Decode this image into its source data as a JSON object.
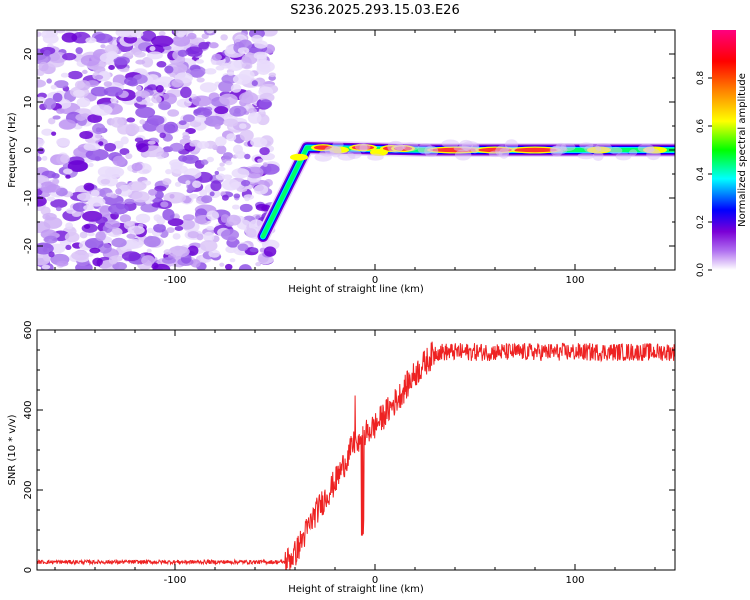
{
  "title": "S236.2025.293.15.03.E26",
  "chart_data": [
    {
      "type": "heatmap",
      "name": "spectrogram",
      "xlabel": "Height of straight line (km)",
      "ylabel": "Frequency (Hz)",
      "xlim": [
        -169,
        150
      ],
      "ylim": [
        -25,
        25
      ],
      "xticks": [
        -100,
        0,
        100
      ],
      "xtick_labels": [
        "-100",
        "0",
        "100"
      ],
      "yticks": [
        20,
        10,
        0,
        -10,
        -20
      ],
      "ytick_labels": [
        "20",
        "10",
        "0",
        "-10",
        "-20"
      ],
      "noise_region_x": [
        -169,
        -51
      ],
      "ramp": {
        "x_start": -56,
        "f_start": -17,
        "x_end": -34,
        "f_end": 0
      },
      "signal_band_freq": 0,
      "description_legend": "Normalized spectral amplitude",
      "colorbar": {
        "label": "Normalized spectral amplitude",
        "range": [
          0,
          1
        ],
        "ticks": [
          0.0,
          0.2,
          0.4,
          0.6,
          0.8
        ],
        "tick_labels": [
          "0.0",
          "0.2",
          "0.4",
          "0.6",
          "0.8"
        ],
        "colors": [
          "#ffffff",
          "#7b00d6",
          "#0000ff",
          "#00ffff",
          "#00ff00",
          "#ffff00",
          "#ff8000",
          "#ff0000",
          "#ff007f"
        ]
      }
    },
    {
      "type": "line",
      "name": "snr",
      "xlabel": "Height of straight line (km)",
      "ylabel": "SNR (10 * v/v)",
      "xlim": [
        -169,
        150
      ],
      "ylim": [
        0,
        600
      ],
      "xticks": [
        -100,
        0,
        100
      ],
      "xtick_labels": [
        "-100",
        "0",
        "100"
      ],
      "yticks": [
        0,
        200,
        400,
        600
      ],
      "ytick_labels": [
        "0",
        "200",
        "400",
        "600"
      ],
      "color": "#ee2222",
      "key_points": [
        {
          "x": -169,
          "y": 20
        },
        {
          "x": -45,
          "y": 20
        },
        {
          "x": -40,
          "y": 40
        },
        {
          "x": -30,
          "y": 140
        },
        {
          "x": -20,
          "y": 220
        },
        {
          "x": -10,
          "y": 320
        },
        {
          "x": 0,
          "y": 360
        },
        {
          "x": 10,
          "y": 420
        },
        {
          "x": 20,
          "y": 490
        },
        {
          "x": 30,
          "y": 545
        },
        {
          "x": 150,
          "y": 545
        }
      ]
    }
  ]
}
